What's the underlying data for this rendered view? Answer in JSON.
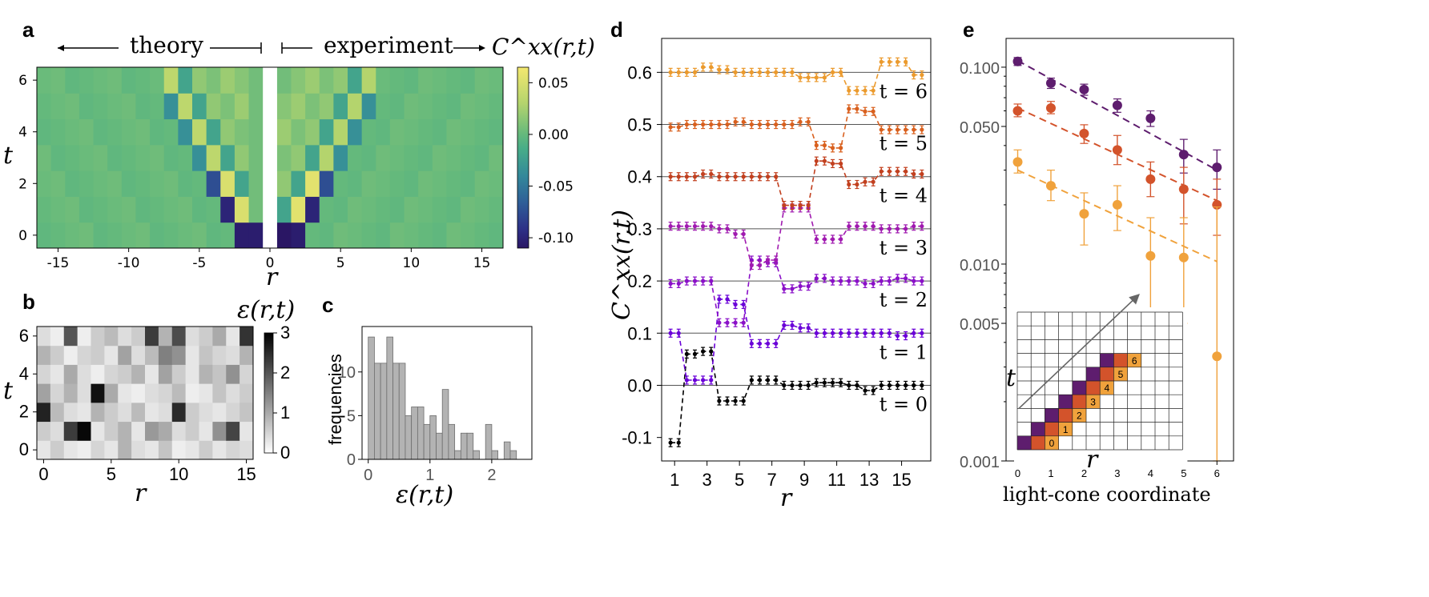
{
  "colors": {
    "purple": "#5e1d6e",
    "darkorange": "#d3532b",
    "orange": "#f0a23c",
    "black": "#000000",
    "gray": "#b3b3b3"
  },
  "chart_data": [
    {
      "panel": "a",
      "type": "heatmap",
      "header_left": "theory",
      "header_right": "experiment",
      "quantity": "C^xx(r,t)",
      "xlabel": "r",
      "ylabel": "t",
      "xticks": [
        "-15",
        "-10",
        "-5",
        "0",
        "5",
        "10",
        "15"
      ],
      "yticks": [
        "0",
        "2",
        "4",
        "6"
      ],
      "colorbar": {
        "ticks": [
          "0.05",
          "0.00",
          "-0.05",
          "-0.10"
        ],
        "range": [
          -0.11,
          0.065
        ]
      },
      "theory_r_range": [
        -16,
        -1
      ],
      "experiment_r_range": [
        1,
        16
      ],
      "t_range": [
        0,
        6
      ]
    },
    {
      "panel": "b",
      "type": "heatmap",
      "quantity": "ε(r,t)",
      "xlabel": "r",
      "ylabel": "t",
      "xticks": [
        "0",
        "5",
        "10",
        "15"
      ],
      "yticks": [
        "0",
        "2",
        "4",
        "6"
      ],
      "colorbar": {
        "ticks": [
          "0",
          "1",
          "2",
          "3"
        ],
        "range": [
          0,
          3
        ]
      },
      "values": [
        [
          0.3,
          0.6,
          0.3,
          0.2,
          0.5,
          0.3,
          0.9,
          0.4,
          0.3,
          0.7,
          0.2,
          0.3,
          0.6,
          0.3,
          0.5,
          0.4
        ],
        [
          0.6,
          0.4,
          2.3,
          2.9,
          0.3,
          0.6,
          0.9,
          0.3,
          1.2,
          1.0,
          0.4,
          0.6,
          0.3,
          1.3,
          2.2,
          0.3
        ],
        [
          2.6,
          0.8,
          0.4,
          0.3,
          0.9,
          0.6,
          0.4,
          0.8,
          0.3,
          0.4,
          2.5,
          0.6,
          0.4,
          0.3,
          0.5,
          0.7
        ],
        [
          1.1,
          0.5,
          0.9,
          0.4,
          2.8,
          1.0,
          0.3,
          0.2,
          0.4,
          0.5,
          0.8,
          0.2,
          0.3,
          0.7,
          0.4,
          0.6
        ],
        [
          0.5,
          0.3,
          1.0,
          0.4,
          0.2,
          0.5,
          0.6,
          0.9,
          0.3,
          1.1,
          0.6,
          0.3,
          0.9,
          0.7,
          1.3,
          0.5
        ],
        [
          0.9,
          0.6,
          0.2,
          0.5,
          0.6,
          0.3,
          1.1,
          0.4,
          0.8,
          1.5,
          1.3,
          0.3,
          0.7,
          0.5,
          0.4,
          0.9
        ],
        [
          0.4,
          0.2,
          2.0,
          0.2,
          0.6,
          0.8,
          0.4,
          0.6,
          2.3,
          0.9,
          2.1,
          0.4,
          0.6,
          1.0,
          0.3,
          2.4
        ]
      ]
    },
    {
      "panel": "c",
      "type": "bar",
      "title": "",
      "xlabel": "ε(r,t)",
      "ylabel": "frequencies",
      "xticks": [
        "0",
        "1",
        "2"
      ],
      "yticks": [
        "0",
        "5",
        "10"
      ],
      "bin_width": 0.1,
      "x_start": 0.0,
      "values": [
        14,
        11,
        11,
        14,
        11,
        11,
        5,
        6,
        6,
        4,
        5,
        3,
        8,
        4,
        1,
        3,
        3,
        1,
        0,
        4,
        1,
        0,
        2,
        1
      ],
      "ylim": [
        0,
        15.2
      ],
      "xlim": [
        -0.1,
        2.65
      ]
    },
    {
      "panel": "d",
      "type": "line",
      "xlabel": "r",
      "ylabel": "C^xx(r,t)",
      "xticks": [
        "1",
        "3",
        "5",
        "7",
        "9",
        "11",
        "13",
        "15"
      ],
      "yticks": [
        "-0.1",
        "0.0",
        "0.1",
        "0.2",
        "0.3",
        "0.4",
        "0.5",
        "0.6"
      ],
      "ylim": [
        -0.145,
        0.665
      ],
      "xlim": [
        0.2,
        16.8
      ],
      "x": [
        1,
        2,
        3,
        4,
        5,
        6,
        7,
        8,
        9,
        10,
        11,
        12,
        13,
        14,
        15,
        16
      ],
      "series": [
        {
          "name": "t = 0",
          "color": "#000000",
          "offset": 0.0,
          "values": [
            -0.11,
            0.06,
            0.065,
            -0.03,
            -0.03,
            0.01,
            0.01,
            0.0,
            0.0,
            0.005,
            0.005,
            0.0,
            -0.01,
            0.0,
            0.0,
            0.0
          ]
        },
        {
          "name": "t = 1",
          "color": "#6a00d8",
          "offset": 0.1,
          "values": [
            0.1,
            0.01,
            0.01,
            0.165,
            0.155,
            0.08,
            0.08,
            0.115,
            0.11,
            0.1,
            0.1,
            0.1,
            0.1,
            0.1,
            0.095,
            0.1
          ]
        },
        {
          "name": "t = 2",
          "color": "#8a10c8",
          "offset": 0.2,
          "values": [
            0.195,
            0.2,
            0.2,
            0.12,
            0.12,
            0.24,
            0.235,
            0.185,
            0.19,
            0.205,
            0.2,
            0.2,
            0.195,
            0.2,
            0.205,
            0.2
          ]
        },
        {
          "name": "t = 3",
          "color": "#a01ab0",
          "offset": 0.3,
          "values": [
            0.305,
            0.305,
            0.305,
            0.3,
            0.29,
            0.23,
            0.24,
            0.34,
            0.34,
            0.28,
            0.28,
            0.305,
            0.305,
            0.3,
            0.3,
            0.305
          ]
        },
        {
          "name": "t = 4",
          "color": "#c2401f",
          "offset": 0.4,
          "values": [
            0.4,
            0.4,
            0.405,
            0.4,
            0.4,
            0.4,
            0.4,
            0.345,
            0.345,
            0.43,
            0.425,
            0.385,
            0.39,
            0.41,
            0.41,
            0.405
          ]
        },
        {
          "name": "t = 5",
          "color": "#d9601e",
          "offset": 0.5,
          "values": [
            0.495,
            0.5,
            0.5,
            0.5,
            0.505,
            0.5,
            0.5,
            0.5,
            0.505,
            0.46,
            0.455,
            0.53,
            0.525,
            0.49,
            0.49,
            0.49
          ]
        },
        {
          "name": "t = 6",
          "color": "#eb9a2d",
          "offset": 0.6,
          "values": [
            0.6,
            0.6,
            0.61,
            0.605,
            0.6,
            0.6,
            0.6,
            0.6,
            0.59,
            0.59,
            0.6,
            0.565,
            0.565,
            0.62,
            0.62,
            0.595
          ]
        }
      ]
    },
    {
      "panel": "e",
      "type": "scatter",
      "xlabel": "light-cone coordinate",
      "yscale": "log",
      "xticks": [
        "0",
        "1",
        "2",
        "3",
        "4",
        "5",
        "6"
      ],
      "yticks": [
        "0.001",
        "0.005",
        "0.010",
        "0.050",
        "0.100"
      ],
      "ylim": [
        0.001,
        0.14
      ],
      "xlim": [
        -0.35,
        6.5
      ],
      "x": [
        0,
        1,
        2,
        3,
        4,
        5,
        6
      ],
      "series": [
        {
          "name": "purple",
          "color": "#5e1d6e",
          "values": [
            0.107,
            0.083,
            0.077,
            0.064,
            0.055,
            0.036,
            0.031
          ],
          "err_low": [
            0.102,
            0.078,
            0.072,
            0.059,
            0.05,
            0.029,
            0.024
          ],
          "err_high": [
            0.112,
            0.088,
            0.082,
            0.069,
            0.06,
            0.043,
            0.038
          ],
          "fit": [
            0.108,
            0.03
          ]
        },
        {
          "name": "darkorange",
          "color": "#d3532b",
          "values": [
            0.06,
            0.062,
            0.046,
            0.038,
            0.027,
            0.024,
            0.02
          ],
          "err_low": [
            0.056,
            0.058,
            0.041,
            0.032,
            0.022,
            0.016,
            0.014
          ],
          "err_high": [
            0.065,
            0.067,
            0.051,
            0.045,
            0.033,
            0.031,
            0.027
          ],
          "fit": [
            0.062,
            0.021
          ]
        },
        {
          "name": "orange",
          "color": "#f0a23c",
          "values": [
            0.033,
            0.025,
            0.018,
            0.02,
            0.011,
            0.0108,
            0.0034
          ],
          "err_low": [
            0.029,
            0.021,
            0.0125,
            0.0148,
            0.0054,
            0.005,
            0.001
          ],
          "err_high": [
            0.038,
            0.03,
            0.023,
            0.025,
            0.0172,
            0.0172,
            0.0195
          ],
          "fit": [
            0.03,
            0.0103
          ]
        }
      ],
      "inset": {
        "xlabel": "r",
        "ylabel": "t",
        "labels": [
          "0",
          "1",
          "2",
          "3",
          "4",
          "5",
          "6"
        ]
      }
    }
  ]
}
